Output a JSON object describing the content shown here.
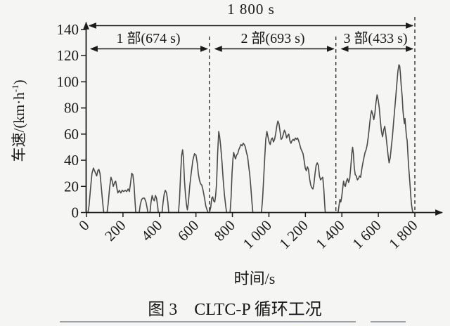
{
  "figure": {
    "caption": "图 3　CLTC-P 循环工况",
    "bottom_rules": "table-top-border"
  },
  "chart_data": {
    "type": "line",
    "title": "图 3　CLTC-P 循环工况",
    "xlabel": "时间/s",
    "ylabel": "车速/(km·h⁻¹)",
    "ylabel_parts": {
      "pre": "车速/(km·h",
      "sup": "-1",
      "post": ")"
    },
    "xlim": [
      0,
      1800
    ],
    "ylim": [
      0,
      140
    ],
    "x_ticks": [
      0,
      200,
      400,
      600,
      800,
      1000,
      1200,
      1400,
      1600,
      1800
    ],
    "x_tick_labels": [
      "0",
      "200",
      "400",
      "600",
      "800",
      "1 000",
      "1 200",
      "1 400",
      "1 600",
      "1 800"
    ],
    "y_ticks": [
      0,
      20,
      40,
      60,
      80,
      100,
      120,
      140
    ],
    "y_tick_labels": [
      "0",
      "20",
      "40",
      "60",
      "80",
      "100",
      "120",
      "140"
    ],
    "grid": false,
    "legend_position": "none",
    "line_color": "#4a4a4a",
    "annotations": {
      "total": {
        "label": "1 800 s",
        "from_s": 0,
        "to_s": 1800
      },
      "phases": [
        {
          "label": "1 部(674 s)",
          "from_s": 0,
          "to_s": 674
        },
        {
          "label": "2 部(693 s)",
          "from_s": 674,
          "to_s": 1367
        },
        {
          "label": "3 部(433 s)",
          "from_s": 1367,
          "to_s": 1800
        }
      ],
      "dividers_s": [
        674,
        1367,
        1800
      ]
    },
    "series": [
      {
        "name": "CLTC-P",
        "points": [
          [
            0,
            0
          ],
          [
            8,
            0
          ],
          [
            14,
            5
          ],
          [
            22,
            18
          ],
          [
            30,
            30
          ],
          [
            38,
            34
          ],
          [
            44,
            32
          ],
          [
            50,
            30
          ],
          [
            56,
            28
          ],
          [
            62,
            32
          ],
          [
            68,
            33
          ],
          [
            74,
            30
          ],
          [
            80,
            21
          ],
          [
            86,
            12
          ],
          [
            92,
            3
          ],
          [
            95,
            0
          ],
          [
            113,
            0
          ],
          [
            119,
            7
          ],
          [
            127,
            19
          ],
          [
            134,
            27
          ],
          [
            141,
            24
          ],
          [
            147,
            20
          ],
          [
            154,
            23
          ],
          [
            160,
            24
          ],
          [
            166,
            19
          ],
          [
            172,
            15
          ],
          [
            180,
            17
          ],
          [
            188,
            15
          ],
          [
            196,
            17
          ],
          [
            204,
            16
          ],
          [
            212,
            17
          ],
          [
            220,
            16
          ],
          [
            228,
            18
          ],
          [
            235,
            16
          ],
          [
            242,
            23
          ],
          [
            248,
            30
          ],
          [
            254,
            29
          ],
          [
            260,
            22
          ],
          [
            266,
            9
          ],
          [
            270,
            0
          ],
          [
            289,
            0
          ],
          [
            295,
            6
          ],
          [
            302,
            10
          ],
          [
            310,
            11
          ],
          [
            318,
            11
          ],
          [
            326,
            8
          ],
          [
            333,
            3
          ],
          [
            337,
            0
          ],
          [
            348,
            0
          ],
          [
            354,
            8
          ],
          [
            360,
            13
          ],
          [
            366,
            10
          ],
          [
            372,
            9
          ],
          [
            378,
            13
          ],
          [
            384,
            11
          ],
          [
            390,
            5
          ],
          [
            394,
            0
          ],
          [
            414,
            0
          ],
          [
            420,
            8
          ],
          [
            426,
            14
          ],
          [
            432,
            17
          ],
          [
            439,
            15
          ],
          [
            446,
            8
          ],
          [
            451,
            0
          ],
          [
            468,
            0
          ],
          [
            504,
            0
          ],
          [
            510,
            10
          ],
          [
            516,
            30
          ],
          [
            522,
            44
          ],
          [
            527,
            48
          ],
          [
            532,
            41
          ],
          [
            537,
            25
          ],
          [
            542,
            15
          ],
          [
            548,
            6
          ],
          [
            553,
            2
          ],
          [
            559,
            8
          ],
          [
            566,
            20
          ],
          [
            574,
            30
          ],
          [
            583,
            40
          ],
          [
            592,
            45
          ],
          [
            600,
            44
          ],
          [
            607,
            38
          ],
          [
            613,
            30
          ],
          [
            619,
            25
          ],
          [
            625,
            22
          ],
          [
            632,
            21
          ],
          [
            639,
            17
          ],
          [
            647,
            11
          ],
          [
            654,
            5
          ],
          [
            661,
            2
          ],
          [
            667,
            0
          ],
          [
            674,
            0
          ],
          [
            681,
            4
          ],
          [
            687,
            11
          ],
          [
            692,
            12
          ],
          [
            697,
            9
          ],
          [
            703,
            8
          ],
          [
            708,
            13
          ],
          [
            713,
            22
          ],
          [
            719,
            45
          ],
          [
            725,
            62
          ],
          [
            730,
            58
          ],
          [
            736,
            50
          ],
          [
            743,
            38
          ],
          [
            749,
            26
          ],
          [
            756,
            14
          ],
          [
            763,
            5
          ],
          [
            768,
            0
          ],
          [
            787,
            0
          ],
          [
            793,
            12
          ],
          [
            798,
            30
          ],
          [
            803,
            41
          ],
          [
            807,
            46
          ],
          [
            812,
            43
          ],
          [
            817,
            41
          ],
          [
            823,
            44
          ],
          [
            829,
            45
          ],
          [
            835,
            48
          ],
          [
            841,
            50
          ],
          [
            847,
            52
          ],
          [
            853,
            51
          ],
          [
            859,
            53
          ],
          [
            865,
            52
          ],
          [
            871,
            50
          ],
          [
            877,
            46
          ],
          [
            883,
            43
          ],
          [
            889,
            36
          ],
          [
            895,
            29
          ],
          [
            901,
            19
          ],
          [
            907,
            8
          ],
          [
            912,
            0
          ],
          [
            959,
            0
          ],
          [
            965,
            10
          ],
          [
            971,
            25
          ],
          [
            977,
            42
          ],
          [
            983,
            56
          ],
          [
            989,
            62
          ],
          [
            995,
            58
          ],
          [
            1001,
            54
          ],
          [
            1007,
            52
          ],
          [
            1013,
            56
          ],
          [
            1019,
            57
          ],
          [
            1025,
            54
          ],
          [
            1031,
            56
          ],
          [
            1037,
            60
          ],
          [
            1043,
            66
          ],
          [
            1049,
            70
          ],
          [
            1055,
            68
          ],
          [
            1061,
            62
          ],
          [
            1067,
            56
          ],
          [
            1073,
            57
          ],
          [
            1079,
            60
          ],
          [
            1085,
            63
          ],
          [
            1091,
            61
          ],
          [
            1097,
            57
          ],
          [
            1103,
            59
          ],
          [
            1109,
            60
          ],
          [
            1115,
            55
          ],
          [
            1121,
            53
          ],
          [
            1127,
            55
          ],
          [
            1133,
            56
          ],
          [
            1139,
            55
          ],
          [
            1145,
            57
          ],
          [
            1151,
            56
          ],
          [
            1157,
            57
          ],
          [
            1163,
            55
          ],
          [
            1169,
            52
          ],
          [
            1175,
            49
          ],
          [
            1181,
            47
          ],
          [
            1187,
            45
          ],
          [
            1193,
            40
          ],
          [
            1199,
            34
          ],
          [
            1205,
            32
          ],
          [
            1211,
            35
          ],
          [
            1217,
            33
          ],
          [
            1223,
            26
          ],
          [
            1229,
            21
          ],
          [
            1235,
            19
          ],
          [
            1241,
            18
          ],
          [
            1247,
            22
          ],
          [
            1253,
            30
          ],
          [
            1259,
            36
          ],
          [
            1265,
            38
          ],
          [
            1271,
            36
          ],
          [
            1277,
            28
          ],
          [
            1283,
            25
          ],
          [
            1289,
            26
          ],
          [
            1295,
            27
          ],
          [
            1301,
            18
          ],
          [
            1305,
            8
          ],
          [
            1309,
            0
          ],
          [
            1367,
            0
          ],
          [
            1379,
            0
          ],
          [
            1384,
            5
          ],
          [
            1389,
            10
          ],
          [
            1394,
            8
          ],
          [
            1399,
            12
          ],
          [
            1404,
            18
          ],
          [
            1409,
            24
          ],
          [
            1414,
            21
          ],
          [
            1419,
            20
          ],
          [
            1425,
            24
          ],
          [
            1431,
            26
          ],
          [
            1437,
            23
          ],
          [
            1443,
            26
          ],
          [
            1449,
            35
          ],
          [
            1455,
            46
          ],
          [
            1459,
            50
          ],
          [
            1463,
            45
          ],
          [
            1468,
            34
          ],
          [
            1473,
            29
          ],
          [
            1479,
            28
          ],
          [
            1485,
            25
          ],
          [
            1491,
            26
          ],
          [
            1497,
            28
          ],
          [
            1503,
            27
          ],
          [
            1509,
            33
          ],
          [
            1515,
            38
          ],
          [
            1521,
            42
          ],
          [
            1527,
            46
          ],
          [
            1533,
            48
          ],
          [
            1539,
            52
          ],
          [
            1545,
            58
          ],
          [
            1551,
            66
          ],
          [
            1557,
            74
          ],
          [
            1563,
            78
          ],
          [
            1569,
            75
          ],
          [
            1575,
            71
          ],
          [
            1581,
            76
          ],
          [
            1587,
            84
          ],
          [
            1593,
            90
          ],
          [
            1599,
            86
          ],
          [
            1605,
            80
          ],
          [
            1611,
            70
          ],
          [
            1617,
            62
          ],
          [
            1623,
            58
          ],
          [
            1629,
            63
          ],
          [
            1635,
            66
          ],
          [
            1641,
            60
          ],
          [
            1647,
            52
          ],
          [
            1653,
            44
          ],
          [
            1659,
            38
          ],
          [
            1665,
            42
          ],
          [
            1671,
            50
          ],
          [
            1677,
            58
          ],
          [
            1683,
            68
          ],
          [
            1689,
            78
          ],
          [
            1695,
            88
          ],
          [
            1701,
            98
          ],
          [
            1707,
            108
          ],
          [
            1713,
            113
          ],
          [
            1717,
            112
          ],
          [
            1721,
            106
          ],
          [
            1725,
            98
          ],
          [
            1731,
            88
          ],
          [
            1735,
            78
          ],
          [
            1739,
            72
          ],
          [
            1743,
            68
          ],
          [
            1746,
            72
          ],
          [
            1750,
            65
          ],
          [
            1754,
            58
          ],
          [
            1758,
            55
          ],
          [
            1762,
            45
          ],
          [
            1766,
            35
          ],
          [
            1770,
            28
          ],
          [
            1774,
            20
          ],
          [
            1778,
            12
          ],
          [
            1782,
            6
          ],
          [
            1786,
            2
          ],
          [
            1790,
            0
          ],
          [
            1800,
            0
          ]
        ]
      }
    ]
  }
}
